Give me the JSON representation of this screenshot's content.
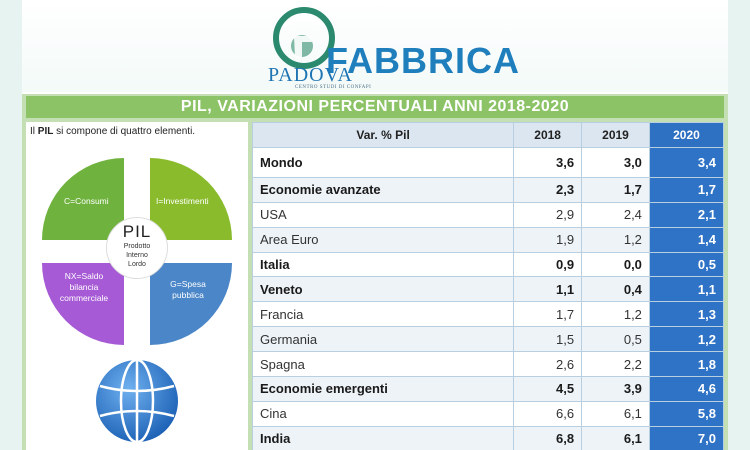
{
  "logo": {
    "brand": "FABBRICA",
    "city": "PADOVA",
    "subtitle": "CENTRO STUDI DI CONFAPI"
  },
  "title": "PIL, VARIAZIONI PERCENTUALI ANNI 2018-2020",
  "left_panel": {
    "caption_pre": "Il ",
    "caption_bold": "PIL",
    "caption_post": " si compone di quattro elementi.",
    "center_title": "PIL",
    "center_sub": [
      "Prodotto",
      "Interno",
      "Lordo"
    ],
    "quadrants": {
      "c": "C=Consumi",
      "i": "I=Investimenti",
      "nx": [
        "NX=Saldo",
        "bilancia",
        "commerciale"
      ],
      "g": [
        "G=Spesa",
        "pubblica"
      ]
    },
    "colors": {
      "consumi": "#6fb23d",
      "investimenti": "#89bb2c",
      "saldo": "#a65ad5",
      "spesa": "#4a86c8"
    }
  },
  "table": {
    "headers": [
      "Var. % Pil",
      "2018",
      "2019",
      "2020"
    ],
    "rows": [
      {
        "label": "Mondo",
        "y2018": "3,6",
        "y2019": "3,0",
        "y2020": "3,4",
        "bold": true
      },
      {
        "label": "Economie avanzate",
        "y2018": "2,3",
        "y2019": "1,7",
        "y2020": "1,7",
        "bold": true
      },
      {
        "label": "USA",
        "y2018": "2,9",
        "y2019": "2,4",
        "y2020": "2,1",
        "bold": false
      },
      {
        "label": "Area Euro",
        "y2018": "1,9",
        "y2019": "1,2",
        "y2020": "1,4",
        "bold": false
      },
      {
        "label": "Italia",
        "y2018": "0,9",
        "y2019": "0,0",
        "y2020": "0,5",
        "bold": true
      },
      {
        "label": "Veneto",
        "y2018": "1,1",
        "y2019": "0,4",
        "y2020": "1,1",
        "bold": true
      },
      {
        "label": "Francia",
        "y2018": "1,7",
        "y2019": "1,2",
        "y2020": "1,3",
        "bold": false
      },
      {
        "label": "Germania",
        "y2018": "1,5",
        "y2019": "0,5",
        "y2020": "1,2",
        "bold": false
      },
      {
        "label": "Spagna",
        "y2018": "2,6",
        "y2019": "2,2",
        "y2020": "1,8",
        "bold": false
      },
      {
        "label": "Economie emergenti",
        "y2018": "4,5",
        "y2019": "3,9",
        "y2020": "4,6",
        "bold": true
      },
      {
        "label": "Cina",
        "y2018": "6,6",
        "y2019": "6,1",
        "y2020": "5,8",
        "bold": false
      },
      {
        "label": "India",
        "y2018": "6,8",
        "y2019": "6,1",
        "y2020": "7,0",
        "bold": true
      }
    ]
  },
  "colors": {
    "title_bar": "#8cc366",
    "highlight_2020": "#2f73c6",
    "brand_blue": "#1f7fbd"
  }
}
